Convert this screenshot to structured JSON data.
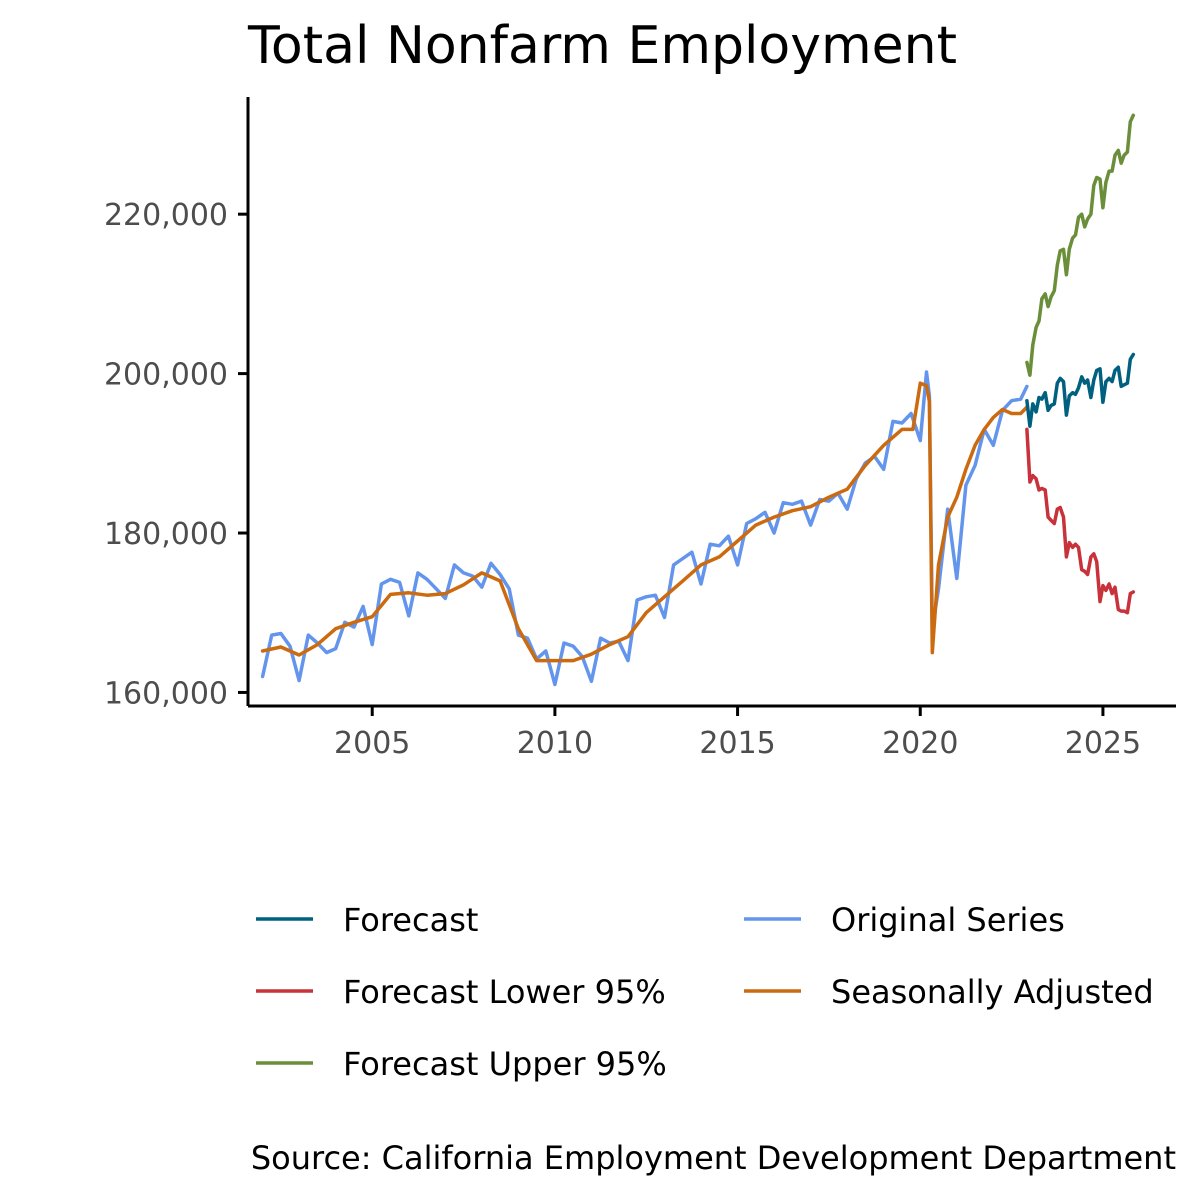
{
  "chart_data": {
    "type": "line",
    "title": "Total Nonfarm Employment",
    "caption": "Source: California Employment Development Department",
    "xlabel": "",
    "ylabel": "",
    "xlim": [
      2001.6,
      2027.0
    ],
    "ylim": [
      158300,
      234700
    ],
    "x_ticks": [
      2005,
      2010,
      2015,
      2020,
      2025
    ],
    "x_tick_labels": [
      "2005",
      "2010",
      "2015",
      "2020",
      "2025"
    ],
    "y_ticks": [
      160000,
      180000,
      200000,
      220000
    ],
    "y_tick_labels": [
      "160,000",
      "180,000",
      "200,000",
      "220,000"
    ],
    "grid": false,
    "legend_position": "bottom",
    "legend": [
      {
        "name": "Forecast",
        "color": "#006080"
      },
      {
        "name": "Original Series",
        "color": "#6495ED"
      },
      {
        "name": "Forecast Lower 95%",
        "color": "#C8323A"
      },
      {
        "name": "Seasonally Adjusted",
        "color": "#CC6A10"
      },
      {
        "name": "Forecast Upper 95%",
        "color": "#6B8E3A"
      }
    ],
    "series": [
      {
        "name": "Original Series",
        "color": "#6495ED",
        "x": [
          2002.0,
          2002.25,
          2002.5,
          2002.75,
          2003.0,
          2003.25,
          2003.5,
          2003.75,
          2004.0,
          2004.25,
          2004.5,
          2004.75,
          2005.0,
          2005.25,
          2005.5,
          2005.75,
          2006.0,
          2006.25,
          2006.5,
          2006.75,
          2007.0,
          2007.25,
          2007.5,
          2007.75,
          2008.0,
          2008.25,
          2008.5,
          2008.75,
          2009.0,
          2009.25,
          2009.5,
          2009.75,
          2010.0,
          2010.25,
          2010.5,
          2010.75,
          2011.0,
          2011.25,
          2011.5,
          2011.75,
          2012.0,
          2012.25,
          2012.5,
          2012.75,
          2013.0,
          2013.25,
          2013.5,
          2013.75,
          2014.0,
          2014.25,
          2014.5,
          2014.75,
          2015.0,
          2015.25,
          2015.5,
          2015.75,
          2016.0,
          2016.25,
          2016.5,
          2016.75,
          2017.0,
          2017.25,
          2017.5,
          2017.75,
          2018.0,
          2018.25,
          2018.5,
          2018.75,
          2019.0,
          2019.25,
          2019.5,
          2019.75,
          2020.0,
          2020.17,
          2020.25,
          2020.33,
          2020.5,
          2020.75,
          2021.0,
          2021.25,
          2021.5,
          2021.75,
          2022.0,
          2022.25,
          2022.5,
          2022.75,
          2022.92
        ],
        "values": [
          162000,
          167200,
          167400,
          165800,
          161500,
          167200,
          166200,
          165000,
          165500,
          168800,
          168200,
          170800,
          166000,
          173600,
          174200,
          173800,
          169600,
          175000,
          174200,
          173000,
          171800,
          176000,
          175000,
          174600,
          173200,
          176200,
          174800,
          173000,
          167200,
          166800,
          164200,
          165200,
          161000,
          166200,
          165800,
          164500,
          161400,
          166800,
          166200,
          166400,
          164000,
          171600,
          172000,
          172200,
          169400,
          176000,
          176800,
          177600,
          173600,
          178600,
          178400,
          179600,
          176000,
          181200,
          181800,
          182600,
          180000,
          183800,
          183600,
          184000,
          181000,
          184200,
          184000,
          185000,
          183000,
          186800,
          188800,
          189600,
          188000,
          194000,
          193800,
          195000,
          191600,
          200200,
          197200,
          168000,
          173000,
          183000,
          174300,
          186000,
          188500,
          193000,
          191000,
          195400,
          196600,
          196800,
          198400
        ]
      },
      {
        "name": "Seasonally Adjusted",
        "color": "#CC6A10",
        "x": [
          2002.0,
          2002.5,
          2003.0,
          2003.5,
          2004.0,
          2004.5,
          2005.0,
          2005.5,
          2006.0,
          2006.5,
          2007.0,
          2007.5,
          2008.0,
          2008.5,
          2009.0,
          2009.5,
          2010.0,
          2010.5,
          2011.0,
          2011.5,
          2012.0,
          2012.5,
          2013.0,
          2013.5,
          2014.0,
          2014.5,
          2015.0,
          2015.5,
          2016.0,
          2016.5,
          2017.0,
          2017.5,
          2018.0,
          2018.5,
          2019.0,
          2019.5,
          2019.8,
          2020.0,
          2020.17,
          2020.25,
          2020.33,
          2020.5,
          2020.75,
          2021.0,
          2021.25,
          2021.5,
          2021.75,
          2022.0,
          2022.25,
          2022.5,
          2022.75,
          2022.92
        ],
        "values": [
          165200,
          165700,
          164700,
          166000,
          168000,
          168800,
          169500,
          172300,
          172500,
          172200,
          172400,
          173500,
          175000,
          174000,
          168000,
          164000,
          164000,
          164000,
          164800,
          166000,
          167000,
          170000,
          172000,
          174000,
          176000,
          177000,
          179000,
          181000,
          182000,
          182800,
          183300,
          184500,
          185500,
          188500,
          191000,
          193000,
          193000,
          198800,
          198500,
          196500,
          165000,
          176000,
          182000,
          184500,
          188000,
          191000,
          193000,
          194500,
          195500,
          195000,
          195000,
          195800
        ]
      },
      {
        "name": "Forecast",
        "color": "#006080",
        "x": [
          2022.92,
          2023.0,
          2023.08,
          2023.17,
          2023.25,
          2023.33,
          2023.42,
          2023.5,
          2023.58,
          2023.67,
          2023.75,
          2023.83,
          2023.92,
          2024.0,
          2024.08,
          2024.17,
          2024.25,
          2024.33,
          2024.42,
          2024.5,
          2024.58,
          2024.67,
          2024.75,
          2024.83,
          2024.92,
          2025.0,
          2025.08,
          2025.17,
          2025.25,
          2025.33,
          2025.42,
          2025.5,
          2025.58,
          2025.67,
          2025.75,
          2025.83
        ],
        "values": [
          196600,
          193400,
          196200,
          195200,
          197000,
          196800,
          197600,
          195400,
          196000,
          196200,
          198800,
          199400,
          199000,
          194800,
          197200,
          197600,
          197400,
          198200,
          199600,
          198800,
          199200,
          197000,
          199200,
          200400,
          200600,
          196400,
          199000,
          199400,
          199000,
          200400,
          200800,
          198400,
          198600,
          198800,
          201800,
          202400
        ]
      },
      {
        "name": "Forecast Lower 95%",
        "color": "#C8323A",
        "x": [
          2022.92,
          2023.0,
          2023.08,
          2023.17,
          2023.25,
          2023.33,
          2023.42,
          2023.5,
          2023.58,
          2023.67,
          2023.75,
          2023.83,
          2023.92,
          2024.0,
          2024.08,
          2024.17,
          2024.25,
          2024.33,
          2024.42,
          2024.5,
          2024.58,
          2024.67,
          2024.75,
          2024.83,
          2024.92,
          2025.0,
          2025.08,
          2025.17,
          2025.25,
          2025.33,
          2025.42,
          2025.5,
          2025.58,
          2025.67,
          2025.75,
          2025.83
        ],
        "values": [
          193000,
          186400,
          187200,
          186800,
          185400,
          185600,
          185400,
          182000,
          181600,
          181200,
          183000,
          183200,
          182000,
          177000,
          178800,
          178200,
          178600,
          178200,
          175400,
          175200,
          174800,
          177000,
          177400,
          176400,
          171400,
          173400,
          172800,
          173600,
          172400,
          173200,
          170400,
          170200,
          170200,
          170000,
          172400,
          172600
        ]
      },
      {
        "name": "Forecast Upper 95%",
        "color": "#6B8E3A",
        "x": [
          2022.92,
          2023.0,
          2023.08,
          2023.17,
          2023.25,
          2023.33,
          2023.42,
          2023.5,
          2023.58,
          2023.67,
          2023.75,
          2023.83,
          2023.92,
          2024.0,
          2024.08,
          2024.17,
          2024.25,
          2024.33,
          2024.42,
          2024.5,
          2024.58,
          2024.67,
          2024.75,
          2024.83,
          2024.92,
          2025.0,
          2025.08,
          2025.17,
          2025.25,
          2025.33,
          2025.42,
          2025.5,
          2025.58,
          2025.67,
          2025.75,
          2025.83
        ],
        "values": [
          201400,
          199800,
          203600,
          205800,
          206600,
          209400,
          210000,
          208400,
          209600,
          210400,
          213600,
          215400,
          215600,
          212400,
          215600,
          217000,
          217400,
          219600,
          220000,
          218400,
          219400,
          220000,
          223600,
          224600,
          224400,
          220800,
          224000,
          225400,
          225400,
          227400,
          228000,
          226400,
          227400,
          227800,
          231600,
          232400
        ]
      }
    ]
  }
}
